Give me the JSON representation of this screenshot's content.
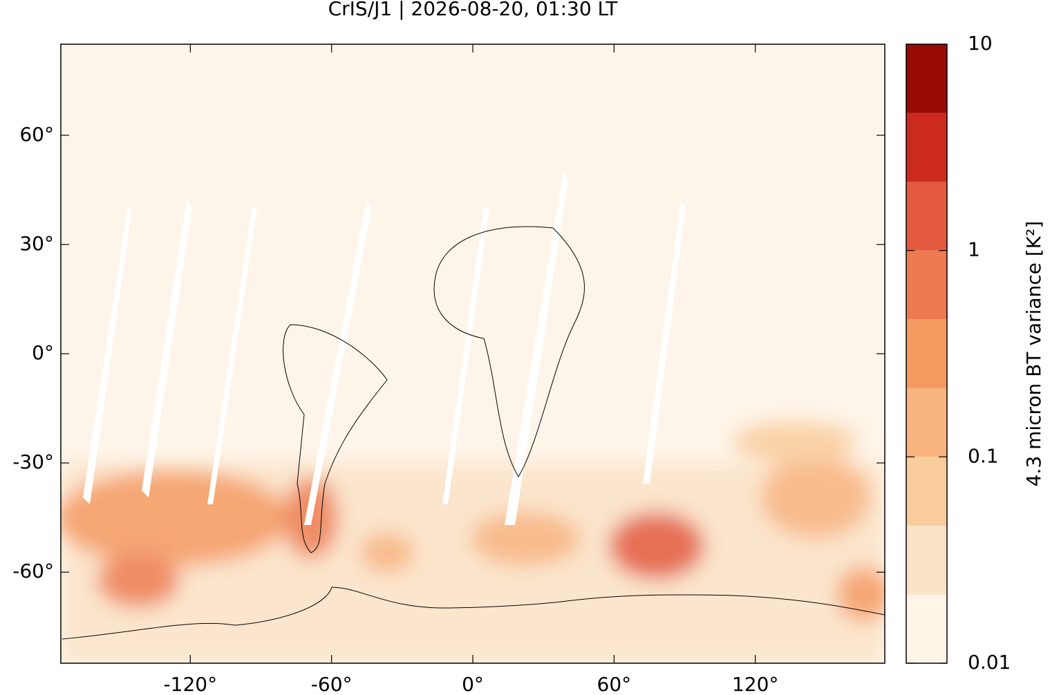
{
  "chart_data": {
    "type": "map",
    "title": "CrIS/J1 | 2026-08-20, 01:30 LT",
    "background_color": "#fef5ea",
    "xlim": [
      -175,
      175
    ],
    "xticks": [
      {
        "value": -120,
        "label": "-120°"
      },
      {
        "value": -60,
        "label": "-60°"
      },
      {
        "value": 0,
        "label": "0°"
      },
      {
        "value": 60,
        "label": "60°"
      },
      {
        "value": 120,
        "label": "120°"
      }
    ],
    "ylim": [
      -85,
      85
    ],
    "yticks": [
      {
        "value": -60,
        "label": "-60°"
      },
      {
        "value": -30,
        "label": "-30°"
      },
      {
        "value": 0,
        "label": "0°"
      },
      {
        "value": 30,
        "label": "30°"
      },
      {
        "value": 60,
        "label": "60°"
      }
    ],
    "colorbar": {
      "label": "4.3 micron BT variance [K²]",
      "log": true,
      "lim": [
        0.01,
        10
      ],
      "ticks": [
        0.01,
        0.1,
        1,
        10
      ],
      "levels": [
        0.01,
        0.0215,
        0.0464,
        0.1,
        0.215,
        0.464,
        1,
        2.15,
        4.64,
        10
      ],
      "colors": [
        "#fef4e8",
        "#fbe3c8",
        "#f9cc9b",
        "#f8b37e",
        "#f49a60",
        "#ed7b50",
        "#e35a3e",
        "#cd2a1e",
        "#990905"
      ]
    }
  }
}
